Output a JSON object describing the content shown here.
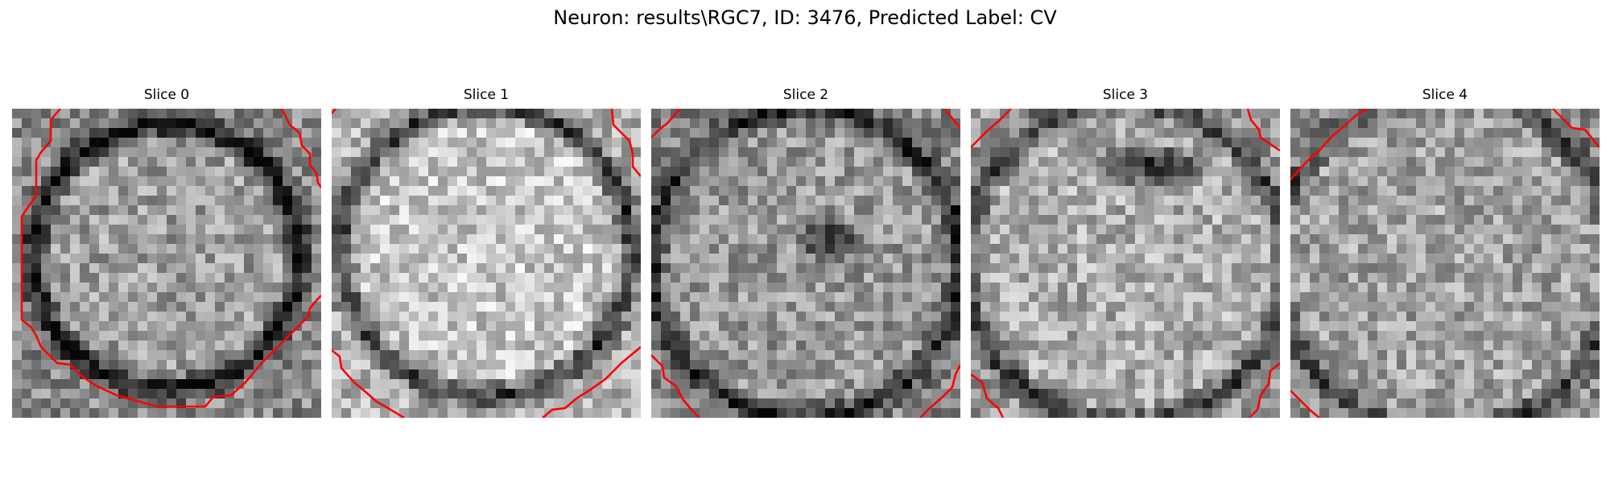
{
  "figure": {
    "title": "Neuron: results\\RGC7, ID: 3476, Predicted Label: CV"
  },
  "slices": [
    {
      "title": "Slice 0"
    },
    {
      "title": "Slice 1"
    },
    {
      "title": "Slice 2"
    },
    {
      "title": "Slice 3"
    },
    {
      "title": "Slice 4"
    }
  ],
  "colors": {
    "contour": "#ff0000",
    "colormap": "grayscale"
  }
}
